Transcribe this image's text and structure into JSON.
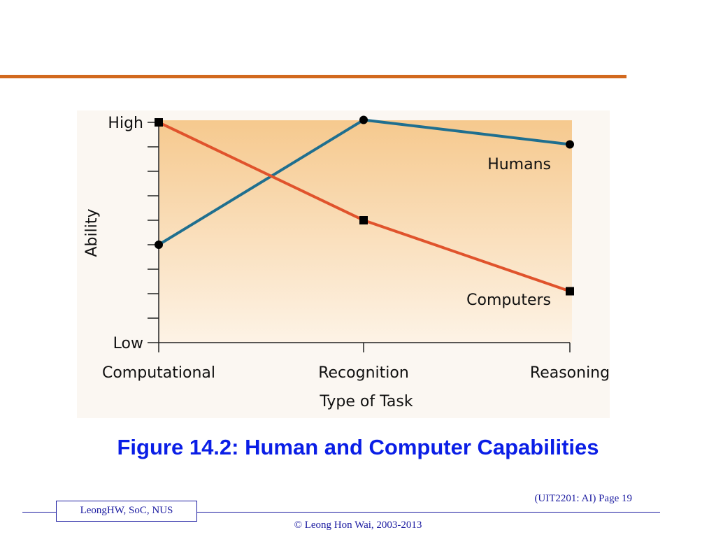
{
  "chart_data": {
    "type": "line",
    "categories": [
      "Computational",
      "Recognition",
      "Reasoning"
    ],
    "xlabel": "Type of Task",
    "ylabel": "Ability",
    "ytick_labels": {
      "low": "Low",
      "high": "High"
    },
    "ylim": [
      0,
      9
    ],
    "grid": false,
    "series": [
      {
        "name": "Humans",
        "values": [
          4,
          9.1,
          8.1
        ],
        "color": "#1f6f8f",
        "marker": "circle"
      },
      {
        "name": "Computers",
        "values": [
          9,
          5,
          2.1
        ],
        "color": "#e0532c",
        "marker": "square"
      }
    ],
    "background_gradient": [
      "#f6c98e",
      "#fdf3e6"
    ]
  },
  "caption": "Figure 14.2: Human and Computer Capabilities",
  "footer": {
    "author_box": "LeongHW, SoC, NUS",
    "page_ref": "(UIT2201: AI) Page 19",
    "copyright": "© Leong Hon Wai, 2003-2013"
  },
  "colors": {
    "accent_rule": "#d2691e",
    "caption": "#0a1ee6",
    "footer": "#1a1aa0"
  }
}
